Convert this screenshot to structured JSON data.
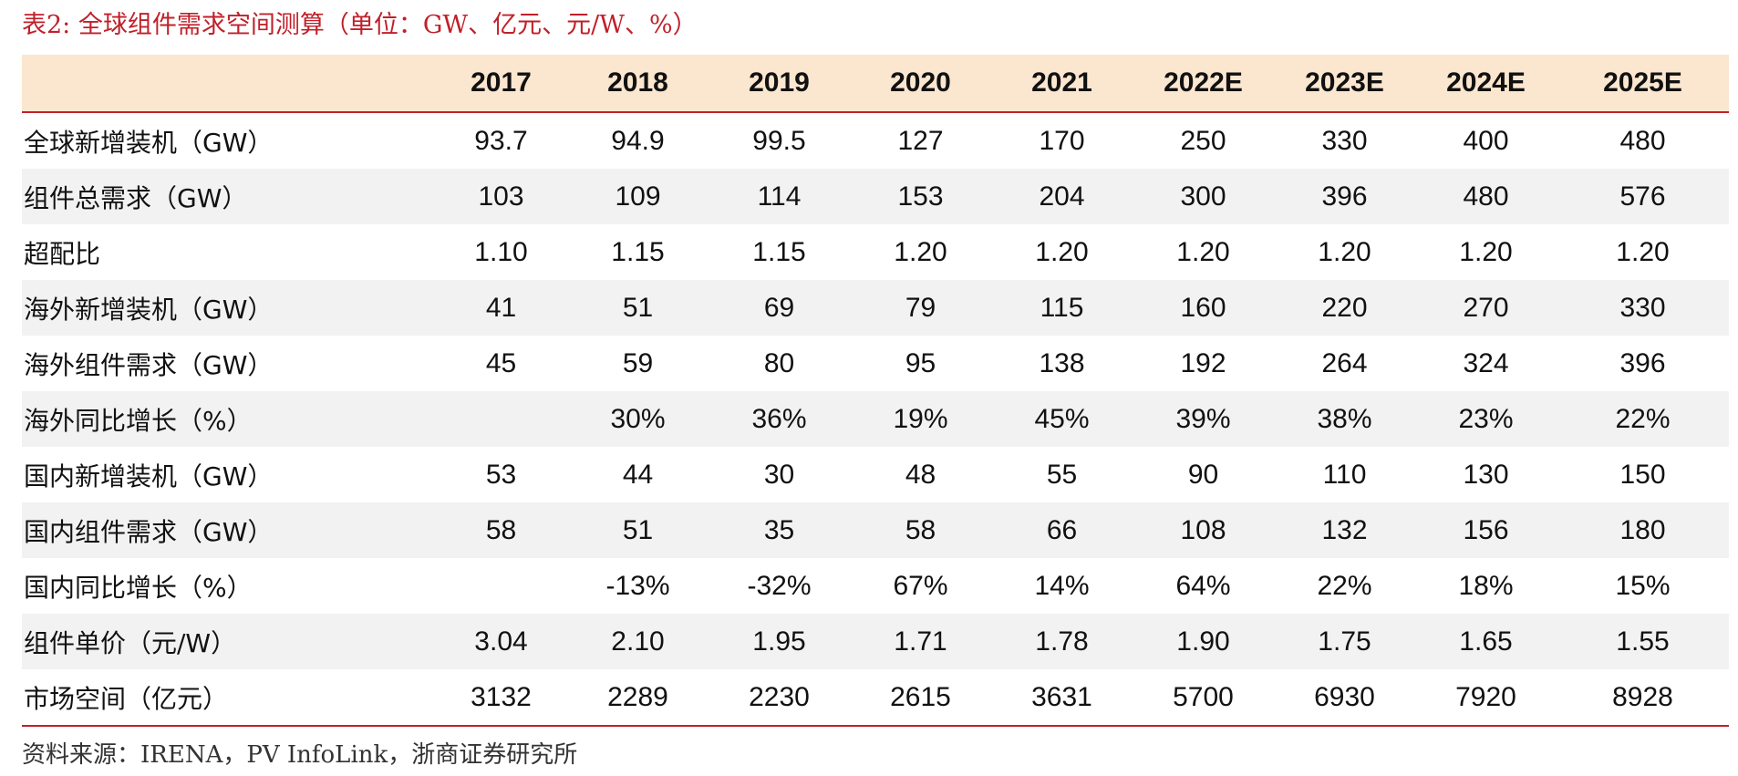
{
  "title": "表2:  全球组件需求空间测算（单位：GW、亿元、元/W、%）",
  "table": {
    "header": [
      "",
      "2017",
      "2018",
      "2019",
      "2020",
      "2021",
      "2022E",
      "2023E",
      "2024E",
      "2025E"
    ],
    "rows": [
      [
        "全球新增装机（GW）",
        "93.7",
        "94.9",
        "99.5",
        "127",
        "170",
        "250",
        "330",
        "400",
        "480"
      ],
      [
        "组件总需求（GW）",
        "103",
        "109",
        "114",
        "153",
        "204",
        "300",
        "396",
        "480",
        "576"
      ],
      [
        "超配比",
        "1.10",
        "1.15",
        "1.15",
        "1.20",
        "1.20",
        "1.20",
        "1.20",
        "1.20",
        "1.20"
      ],
      [
        "海外新增装机（GW）",
        "41",
        "51",
        "69",
        "79",
        "115",
        "160",
        "220",
        "270",
        "330"
      ],
      [
        "海外组件需求（GW）",
        "45",
        "59",
        "80",
        "95",
        "138",
        "192",
        "264",
        "324",
        "396"
      ],
      [
        "海外同比增长（%）",
        "",
        "30%",
        "36%",
        "19%",
        "45%",
        "39%",
        "38%",
        "23%",
        "22%"
      ],
      [
        "国内新增装机（GW）",
        "53",
        "44",
        "30",
        "48",
        "55",
        "90",
        "110",
        "130",
        "150"
      ],
      [
        "国内组件需求（GW）",
        "58",
        "51",
        "35",
        "58",
        "66",
        "108",
        "132",
        "156",
        "180"
      ],
      [
        "国内同比增长（%）",
        "",
        "-13%",
        "-32%",
        "67%",
        "14%",
        "64%",
        "22%",
        "18%",
        "15%"
      ],
      [
        "组件单价（元/W）",
        "3.04",
        "2.10",
        "1.95",
        "1.71",
        "1.78",
        "1.90",
        "1.75",
        "1.65",
        "1.55"
      ],
      [
        "市场空间（亿元）",
        "3132",
        "2289",
        "2230",
        "2615",
        "3631",
        "5700",
        "6930",
        "7920",
        "8928"
      ]
    ]
  },
  "source": "资料来源：IRENA，PV InfoLink，浙商证券研究所",
  "colors": {
    "accent": "#c0202a",
    "header_bg": "#fbe6cf",
    "stripe_bg": "#f2f2f2"
  }
}
